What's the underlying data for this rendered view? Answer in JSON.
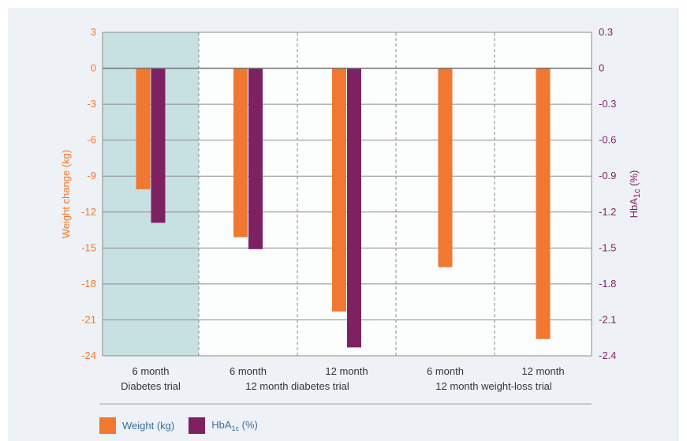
{
  "colors": {
    "weight": "#f07830",
    "hba1c": "#7e2163",
    "panel_bg": "#eef2f6",
    "shade": "#c7e0e2",
    "plot_bg": "#fcfdfd",
    "grid": "#8c8c8c",
    "left_axis_text": "#f07830",
    "right_axis_text": "#7e2163",
    "label_text": "#333333",
    "legend_text": "#3b6e9a"
  },
  "chart_data": {
    "type": "bar",
    "y_left": {
      "label": "Weight change (kg)",
      "range": [
        -24,
        3
      ],
      "ticks": [
        "3",
        "0",
        "-3",
        "-6",
        "-9",
        "-12",
        "-15",
        "-18",
        "-21",
        "-24"
      ]
    },
    "y_right": {
      "label_main": "HbA",
      "label_sub": "1c",
      "label_tail": " (%)",
      "range": [
        -2.4,
        0.3
      ],
      "ticks": [
        "0.3",
        "0",
        "-0.3",
        "-0.6",
        "-0.9",
        "-1.2",
        "-1.5",
        "-1.8",
        "-2.1",
        "-2.4"
      ]
    },
    "categories": [
      "6 month",
      "6 month",
      "12 month",
      "6 month",
      "12 month"
    ],
    "groups": [
      {
        "label": "Diabetes trial",
        "span": [
          0,
          0
        ],
        "shaded": true
      },
      {
        "label": "12 month diabetes trial",
        "span": [
          1,
          2
        ],
        "shaded": false
      },
      {
        "label": "12 month weight-loss trial",
        "span": [
          3,
          4
        ],
        "shaded": false
      }
    ],
    "series": [
      {
        "name": "Weight (kg)",
        "axis": "left",
        "values": [
          -10.1,
          -14.1,
          -20.3,
          -16.6,
          -22.6
        ]
      },
      {
        "name": "HbA1c (%)",
        "axis": "right",
        "values": [
          -1.29,
          -1.51,
          -2.33,
          null,
          null
        ]
      }
    ],
    "grid": true,
    "legend_position": "bottom-left"
  },
  "legend": {
    "weight_label": "Weight (kg)",
    "hba1c_main": "HbA",
    "hba1c_sub": "1c",
    "hba1c_tail": " (%)"
  }
}
